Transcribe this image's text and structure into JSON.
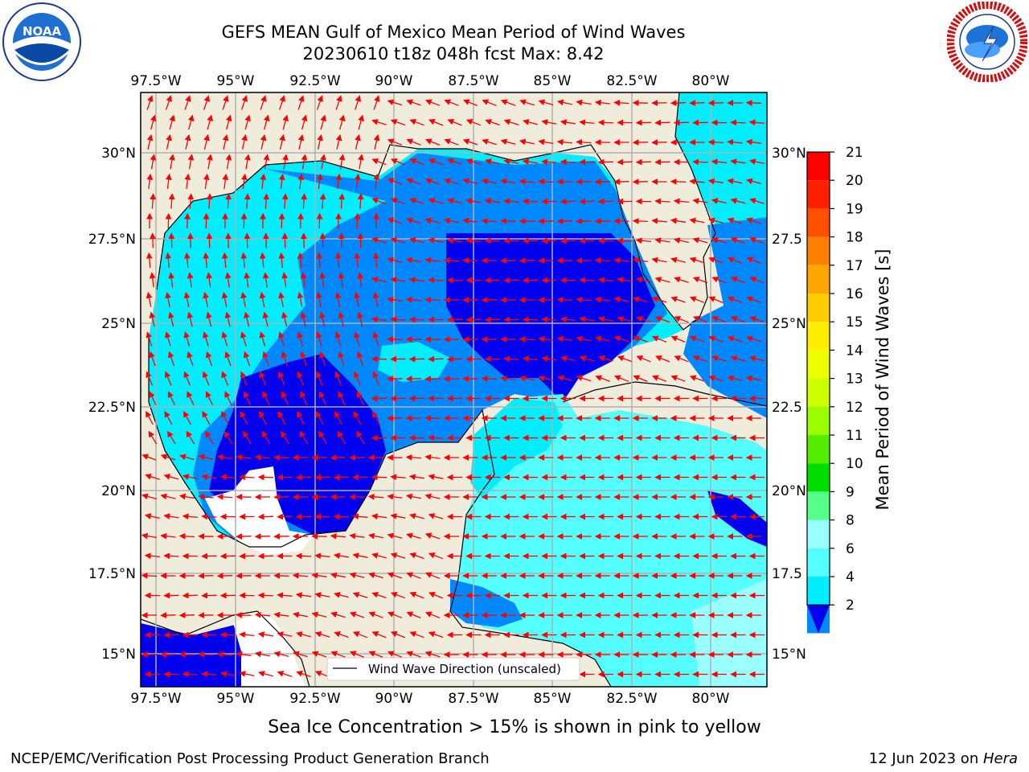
{
  "header": {
    "title_line1": "GEFS MEAN Gulf of Mexico Mean Period of Wind Waves",
    "title_line2": "20230610 t18z 048h fcst   Max: 8.42"
  },
  "logos": {
    "left": "NOAA",
    "left_ring": "NATIONAL OCEANIC AND ATMOSPHERIC ADMINISTRATION · U.S. DEPARTMENT OF COMMERCE",
    "right_ring": "NATIONAL WEATHER SERVICE"
  },
  "map": {
    "lon_labels": [
      "97.5°W",
      "95°W",
      "92.5°W",
      "90°W",
      "87.5°W",
      "85°W",
      "82.5°W",
      "80°W"
    ],
    "lat_labels_left": [
      "30°N",
      "27.5°N",
      "25°N",
      "22.5°N",
      "20°N",
      "17.5°N",
      "15°N"
    ],
    "lat_labels_right": [
      "30°N",
      "27.5",
      "25°N",
      "22.5",
      "20°N",
      "17.5",
      "15°N"
    ],
    "legend_label": "Wind Wave Direction (unscaled)",
    "colors": {
      "land": "#efecdc",
      "arrow": "#ff0000",
      "grid": "#b0b0b0"
    }
  },
  "colorbar": {
    "label": "Mean Period of Wind Waves [s]",
    "ticks": [
      "21",
      "20",
      "19",
      "18",
      "17",
      "16",
      "15",
      "14",
      "13",
      "12",
      "11",
      "10",
      "9",
      "8",
      "6",
      "4",
      "2"
    ],
    "colors": [
      "#ff0000",
      "#ff2000",
      "#ff5000",
      "#ff8000",
      "#ffa500",
      "#ffcc00",
      "#ffee00",
      "#eeff00",
      "#ccff00",
      "#99ff00",
      "#55ee00",
      "#00dd00",
      "#55ff88",
      "#99ffff",
      "#55ffff",
      "#00eeff",
      "#0088ff"
    ],
    "extend_color": "#0000ee"
  },
  "footer": {
    "note": "Sea Ice Concentration > 15% is shown in pink to yellow",
    "credit_left": "NCEP/EMC/Verification Post Processing Product Generation Branch",
    "credit_right_prefix": "12 Jun 2023 on ",
    "credit_right_host": "Hera"
  }
}
